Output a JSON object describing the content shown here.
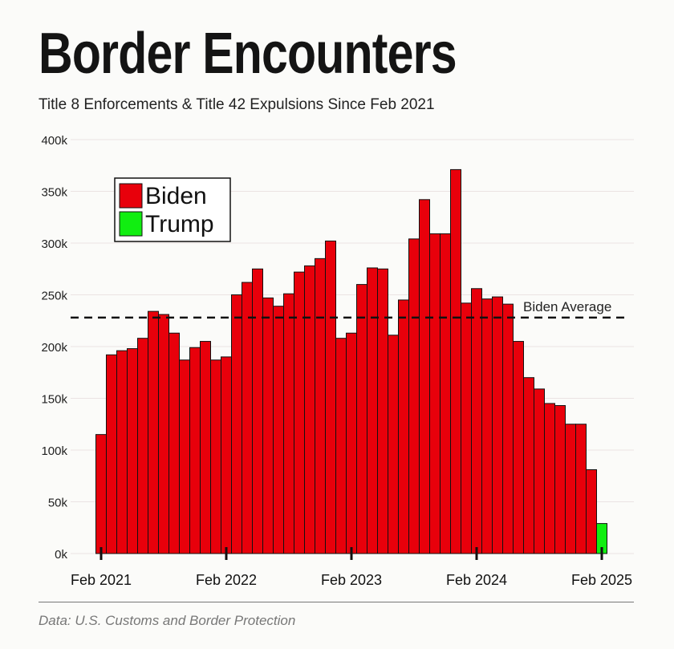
{
  "header": {
    "title": "Border Encounters",
    "subtitle": "Title 8 Enforcements & Title 42 Expulsions Since Feb 2021"
  },
  "footer": {
    "source": "Data: U.S. Customs and Border Protection"
  },
  "chart_data": {
    "type": "bar",
    "title": "Border Encounters",
    "subtitle": "Title 8 Enforcements & Title 42 Expulsions Since Feb 2021",
    "xlabel": "",
    "ylabel": "",
    "ylim": [
      0,
      400000
    ],
    "y_ticks": [
      0,
      50000,
      100000,
      150000,
      200000,
      250000,
      300000,
      350000,
      400000
    ],
    "y_tick_labels": [
      "0k",
      "50k",
      "100k",
      "150k",
      "200k",
      "250k",
      "300k",
      "350k",
      "400k"
    ],
    "x_tick_labels": [
      "Feb 2021",
      "Feb 2022",
      "Feb 2023",
      "Feb 2024",
      "Feb 2025"
    ],
    "x_tick_indices": [
      0,
      12,
      24,
      36,
      48
    ],
    "grid": true,
    "legend_position": "top-left",
    "categories": [
      "Feb 2021",
      "Mar 2021",
      "Apr 2021",
      "May 2021",
      "Jun 2021",
      "Jul 2021",
      "Aug 2021",
      "Sep 2021",
      "Oct 2021",
      "Nov 2021",
      "Dec 2021",
      "Jan 2022",
      "Feb 2022",
      "Mar 2022",
      "Apr 2022",
      "May 2022",
      "Jun 2022",
      "Jul 2022",
      "Aug 2022",
      "Sep 2022",
      "Oct 2022",
      "Nov 2022",
      "Dec 2022",
      "Jan 2023",
      "Feb 2023",
      "Mar 2023",
      "Apr 2023",
      "May 2023",
      "Jun 2023",
      "Jul 2023",
      "Aug 2023",
      "Sep 2023",
      "Oct 2023",
      "Nov 2023",
      "Dec 2023",
      "Jan 2024",
      "Feb 2024",
      "Mar 2024",
      "Apr 2024",
      "May 2024",
      "Jun 2024",
      "Jul 2024",
      "Aug 2024",
      "Sep 2024",
      "Oct 2024",
      "Nov 2024",
      "Dec 2024",
      "Jan 2025",
      "Feb 2025"
    ],
    "series": [
      {
        "name": "Biden",
        "color": "#e8000b",
        "values": [
          115000,
          192000,
          196000,
          198000,
          208000,
          234000,
          231000,
          213000,
          187000,
          199000,
          205000,
          187000,
          190000,
          250000,
          262000,
          275000,
          247000,
          239000,
          251000,
          272000,
          278000,
          285000,
          302000,
          208000,
          213000,
          260000,
          276000,
          275000,
          211000,
          245000,
          304000,
          342000,
          309000,
          309000,
          371000,
          242000,
          256000,
          246000,
          248000,
          241000,
          205000,
          170000,
          159000,
          145000,
          143000,
          125000,
          125000,
          81000,
          null
        ]
      },
      {
        "name": "Trump",
        "color": "#11ee11",
        "values": [
          null,
          null,
          null,
          null,
          null,
          null,
          null,
          null,
          null,
          null,
          null,
          null,
          null,
          null,
          null,
          null,
          null,
          null,
          null,
          null,
          null,
          null,
          null,
          null,
          null,
          null,
          null,
          null,
          null,
          null,
          null,
          null,
          null,
          null,
          null,
          null,
          null,
          null,
          null,
          null,
          null,
          null,
          null,
          null,
          null,
          null,
          null,
          null,
          29000
        ]
      }
    ],
    "reference_line": {
      "label": "Biden Average",
      "value": 228000,
      "style": "dashed"
    }
  }
}
